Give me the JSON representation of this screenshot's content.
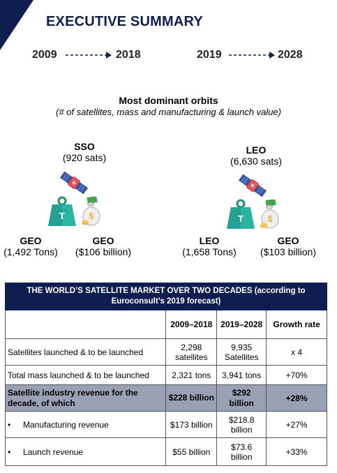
{
  "header": {
    "title": "EXECUTIVE SUMMARY"
  },
  "periods": {
    "p1_start": "2009",
    "p1_end": "2018",
    "p2_start": "2019",
    "p2_end": "2028"
  },
  "orbits": {
    "title": "Most dominant orbits",
    "note": "(# of satellites, mass and manufacturing & launch value)",
    "left": {
      "sats_orbit": "SSO",
      "sats_value": "(920 sats)",
      "mass_orbit": "GEO",
      "mass_value": "(1,492 Tons)",
      "value_orbit": "GEO",
      "value_value": "($106 billion)"
    },
    "right": {
      "sats_orbit": "LEO",
      "sats_value": "(6,630 sats)",
      "mass_orbit": "LEO",
      "mass_value": "(1,658 Tons)",
      "value_orbit": "GEO",
      "value_value": "($103 billion)"
    }
  },
  "icons": {
    "satellite": "satellite-icon",
    "weight": "weight-icon",
    "money": "money-bag-icon",
    "weight_letter": "T",
    "money_symbol": "$"
  },
  "table": {
    "header": "THE WORLD’S SATELLITE MARKET OVER TWO DECADES (according to Euroconsult’s 2019 forecast)",
    "columns": [
      "2009–2018",
      "2019–2028",
      "Growth rate"
    ],
    "rows": [
      {
        "label": "Satellites launched & to be launched",
        "v1": "2,298 satellites",
        "v2": "9,935 Satellites",
        "growth": "x 4",
        "highlight": false,
        "bullet": false
      },
      {
        "label": "Total mass launched & to be launched",
        "v1": "2,321 tons",
        "v2": "3,941 tons",
        "growth": "+70%",
        "highlight": false,
        "bullet": false
      },
      {
        "label": "Satellite industry revenue for the decade, of which",
        "v1": "$228 billion",
        "v2": "$292 billion",
        "growth": "+28%",
        "highlight": true,
        "bullet": false
      },
      {
        "label": "Manufacturing revenue",
        "v1": "$173 billion",
        "v2": "$218.8 billion",
        "growth": "+27%",
        "highlight": false,
        "bullet": true
      },
      {
        "label": "Launch revenue",
        "v1": "$55 billion",
        "v2": "$73.6 billion",
        "growth": "+33%",
        "highlight": false,
        "bullet": true
      }
    ],
    "bullet_char": "•"
  },
  "colors": {
    "navy": "#0e1f4f",
    "highlight": "#9aa1b5",
    "weight": "#2bb3a3",
    "money": "#f2b33d"
  }
}
